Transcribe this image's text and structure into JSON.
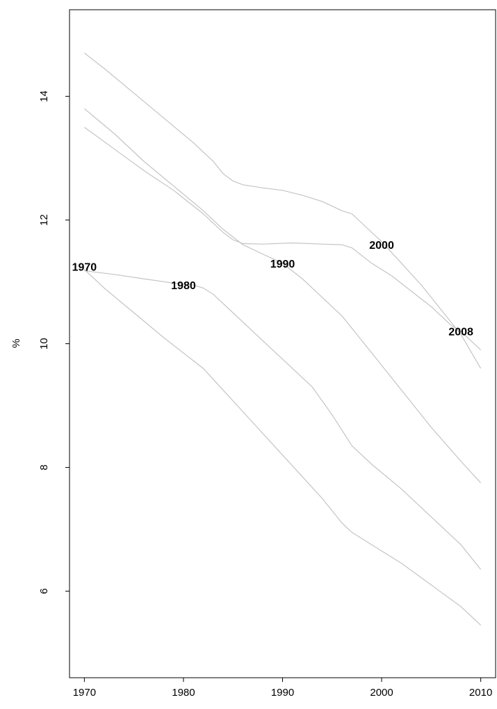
{
  "chart_data": {
    "type": "line",
    "title": "",
    "xlabel": "",
    "ylabel": "%",
    "xlim": [
      1968.5,
      2011.5
    ],
    "ylim": [
      4.6,
      15.4
    ],
    "x_ticks": [
      1970,
      1980,
      1990,
      2000,
      2010
    ],
    "y_ticks": [
      6,
      8,
      10,
      12,
      14
    ],
    "grid": false,
    "legend": "none",
    "line_color": "#c4c4c4",
    "series": [
      {
        "name": "1970",
        "label_at": {
          "x": 1970,
          "y": 11.25
        },
        "points": [
          [
            1970,
            11.2
          ],
          [
            1972,
            10.9
          ],
          [
            1975,
            10.5
          ],
          [
            1978,
            10.1
          ],
          [
            1980,
            9.85
          ],
          [
            1982,
            9.6
          ],
          [
            1984,
            9.25
          ],
          [
            1986,
            8.9
          ],
          [
            1988,
            8.55
          ],
          [
            1990,
            8.2
          ],
          [
            1992,
            7.85
          ],
          [
            1994,
            7.5
          ],
          [
            1996,
            7.1
          ],
          [
            1997,
            6.95
          ],
          [
            1999,
            6.75
          ],
          [
            2002,
            6.45
          ],
          [
            2005,
            6.1
          ],
          [
            2008,
            5.75
          ],
          [
            2010,
            5.45
          ]
        ]
      },
      {
        "name": "1980",
        "label_at": {
          "x": 1980,
          "y": 10.95
        },
        "points": [
          [
            1970,
            11.18
          ],
          [
            1973,
            11.12
          ],
          [
            1976,
            11.05
          ],
          [
            1979,
            10.98
          ],
          [
            1981,
            10.95
          ],
          [
            1982,
            10.9
          ],
          [
            1983,
            10.8
          ],
          [
            1985,
            10.5
          ],
          [
            1987,
            10.2
          ],
          [
            1989,
            9.9
          ],
          [
            1991,
            9.6
          ],
          [
            1993,
            9.3
          ],
          [
            1995,
            8.85
          ],
          [
            1997,
            8.35
          ],
          [
            1999,
            8.05
          ],
          [
            2002,
            7.65
          ],
          [
            2005,
            7.2
          ],
          [
            2008,
            6.75
          ],
          [
            2010,
            6.35
          ]
        ]
      },
      {
        "name": "1990",
        "label_at": {
          "x": 1990,
          "y": 11.3
        },
        "points": [
          [
            1970,
            13.8
          ],
          [
            1973,
            13.4
          ],
          [
            1976,
            12.95
          ],
          [
            1979,
            12.55
          ],
          [
            1982,
            12.15
          ],
          [
            1984,
            11.85
          ],
          [
            1986,
            11.6
          ],
          [
            1988,
            11.45
          ],
          [
            1990,
            11.3
          ],
          [
            1992,
            11.05
          ],
          [
            1994,
            10.75
          ],
          [
            1996,
            10.45
          ],
          [
            1997,
            10.25
          ],
          [
            1999,
            9.85
          ],
          [
            2002,
            9.25
          ],
          [
            2005,
            8.65
          ],
          [
            2008,
            8.1
          ],
          [
            2010,
            7.75
          ]
        ]
      },
      {
        "name": "2000",
        "label_at": {
          "x": 2000,
          "y": 11.6
        },
        "points": [
          [
            1970,
            13.5
          ],
          [
            1973,
            13.15
          ],
          [
            1976,
            12.8
          ],
          [
            1979,
            12.48
          ],
          [
            1982,
            12.1
          ],
          [
            1984,
            11.8
          ],
          [
            1985,
            11.68
          ],
          [
            1986,
            11.62
          ],
          [
            1988,
            11.61
          ],
          [
            1991,
            11.63
          ],
          [
            1994,
            11.61
          ],
          [
            1996,
            11.6
          ],
          [
            1997,
            11.55
          ],
          [
            1999,
            11.3
          ],
          [
            2001,
            11.1
          ],
          [
            2003,
            10.85
          ],
          [
            2005,
            10.6
          ],
          [
            2007,
            10.3
          ],
          [
            2008,
            10.2
          ],
          [
            2010,
            9.9
          ]
        ]
      },
      {
        "name": "2008",
        "label_at": {
          "x": 2008,
          "y": 10.2
        },
        "points": [
          [
            1970,
            14.7
          ],
          [
            1972,
            14.45
          ],
          [
            1975,
            14.05
          ],
          [
            1978,
            13.65
          ],
          [
            1981,
            13.25
          ],
          [
            1983,
            12.95
          ],
          [
            1984,
            12.75
          ],
          [
            1985,
            12.63
          ],
          [
            1986,
            12.57
          ],
          [
            1988,
            12.52
          ],
          [
            1990,
            12.48
          ],
          [
            1992,
            12.4
          ],
          [
            1994,
            12.3
          ],
          [
            1996,
            12.15
          ],
          [
            1997,
            12.1
          ],
          [
            1998,
            11.95
          ],
          [
            2000,
            11.65
          ],
          [
            2002,
            11.3
          ],
          [
            2004,
            10.95
          ],
          [
            2006,
            10.55
          ],
          [
            2008,
            10.15
          ],
          [
            2010,
            9.6
          ]
        ]
      }
    ]
  }
}
